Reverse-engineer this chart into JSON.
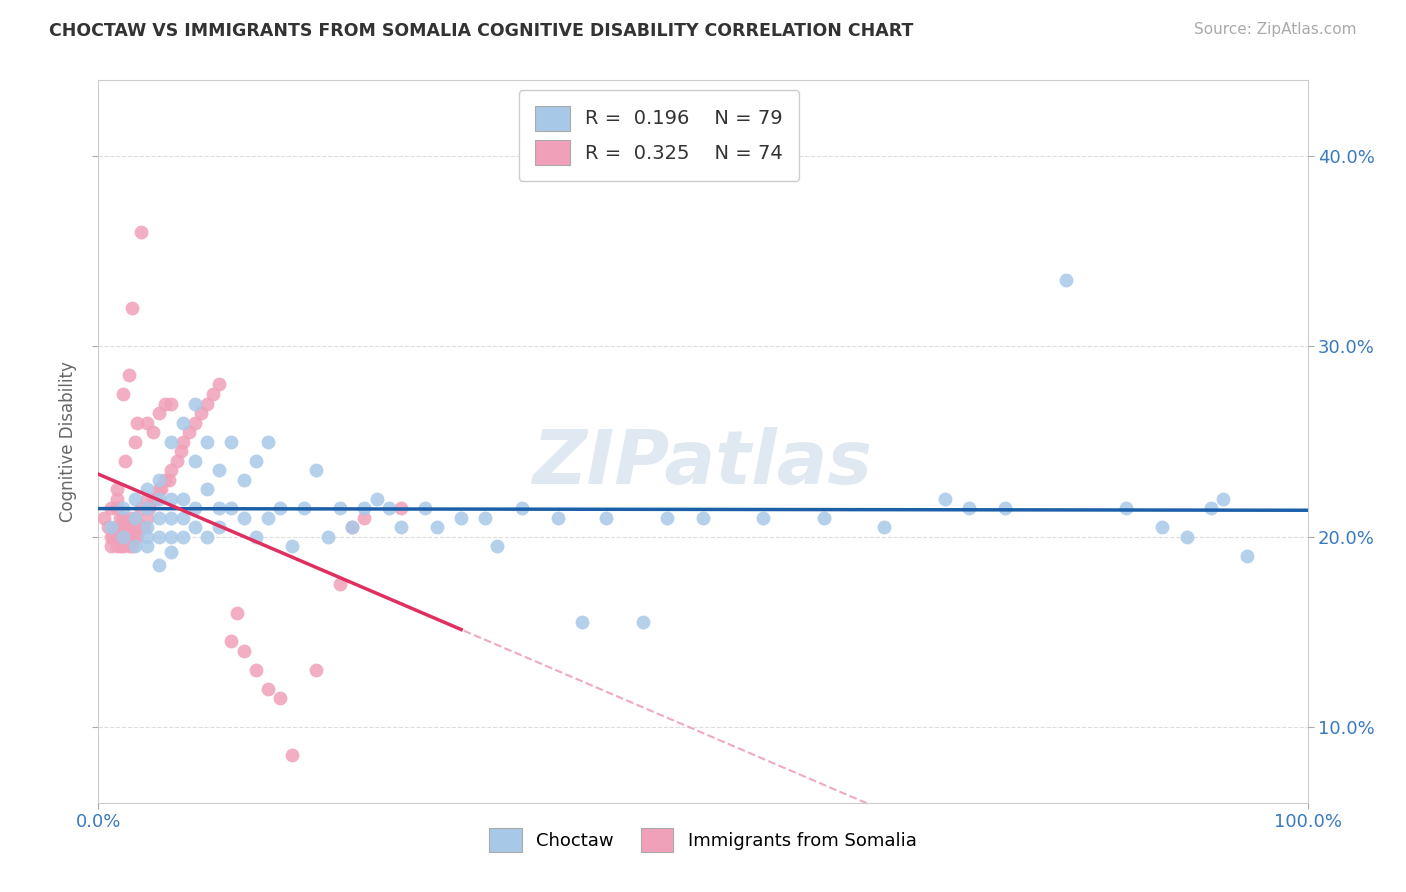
{
  "title": "CHOCTAW VS IMMIGRANTS FROM SOMALIA COGNITIVE DISABILITY CORRELATION CHART",
  "source": "Source: ZipAtlas.com",
  "ylabel": "Cognitive Disability",
  "xlabel": "",
  "xlim": [
    0,
    1.0
  ],
  "ylim": [
    0.06,
    0.44
  ],
  "yticks": [
    0.1,
    0.2,
    0.3,
    0.4
  ],
  "ytick_labels": [
    "10.0%",
    "20.0%",
    "30.0%",
    "40.0%"
  ],
  "xtick_labels": [
    "0.0%",
    "100.0%"
  ],
  "choctaw_color": "#a8c8e8",
  "somalia_color": "#f0a0b8",
  "choctaw_line_color": "#1a5fa8",
  "somalia_line_color": "#e03060",
  "choctaw_R": 0.196,
  "choctaw_N": 79,
  "somalia_R": 0.325,
  "somalia_N": 74,
  "watermark": "ZIPatlas",
  "legend_choctaw": "Choctaw",
  "legend_somalia": "Immigrants from Somalia",
  "choctaw_scatter_x": [
    0.01,
    0.02,
    0.02,
    0.03,
    0.03,
    0.03,
    0.04,
    0.04,
    0.04,
    0.04,
    0.04,
    0.05,
    0.05,
    0.05,
    0.05,
    0.05,
    0.06,
    0.06,
    0.06,
    0.06,
    0.06,
    0.07,
    0.07,
    0.07,
    0.07,
    0.08,
    0.08,
    0.08,
    0.08,
    0.09,
    0.09,
    0.09,
    0.1,
    0.1,
    0.1,
    0.11,
    0.11,
    0.12,
    0.12,
    0.13,
    0.13,
    0.14,
    0.14,
    0.15,
    0.16,
    0.17,
    0.18,
    0.19,
    0.2,
    0.21,
    0.22,
    0.23,
    0.24,
    0.25,
    0.27,
    0.28,
    0.3,
    0.32,
    0.33,
    0.35,
    0.38,
    0.4,
    0.42,
    0.45,
    0.47,
    0.5,
    0.55,
    0.6,
    0.65,
    0.7,
    0.72,
    0.75,
    0.8,
    0.85,
    0.88,
    0.9,
    0.92,
    0.93,
    0.95
  ],
  "choctaw_scatter_y": [
    0.205,
    0.2,
    0.215,
    0.195,
    0.21,
    0.22,
    0.2,
    0.205,
    0.215,
    0.195,
    0.225,
    0.185,
    0.2,
    0.21,
    0.22,
    0.23,
    0.192,
    0.2,
    0.21,
    0.22,
    0.25,
    0.2,
    0.21,
    0.22,
    0.26,
    0.205,
    0.215,
    0.24,
    0.27,
    0.2,
    0.225,
    0.25,
    0.205,
    0.215,
    0.235,
    0.215,
    0.25,
    0.21,
    0.23,
    0.2,
    0.24,
    0.21,
    0.25,
    0.215,
    0.195,
    0.215,
    0.235,
    0.2,
    0.215,
    0.205,
    0.215,
    0.22,
    0.215,
    0.205,
    0.215,
    0.205,
    0.21,
    0.21,
    0.195,
    0.215,
    0.21,
    0.155,
    0.21,
    0.155,
    0.21,
    0.21,
    0.21,
    0.21,
    0.205,
    0.22,
    0.215,
    0.215,
    0.335,
    0.215,
    0.205,
    0.2,
    0.215,
    0.22,
    0.19
  ],
  "somalia_scatter_x": [
    0.005,
    0.008,
    0.01,
    0.01,
    0.01,
    0.012,
    0.015,
    0.015,
    0.015,
    0.015,
    0.015,
    0.018,
    0.018,
    0.018,
    0.02,
    0.02,
    0.02,
    0.02,
    0.022,
    0.022,
    0.022,
    0.025,
    0.025,
    0.025,
    0.025,
    0.028,
    0.028,
    0.028,
    0.03,
    0.03,
    0.03,
    0.03,
    0.032,
    0.032,
    0.035,
    0.035,
    0.035,
    0.038,
    0.04,
    0.04,
    0.04,
    0.042,
    0.045,
    0.045,
    0.048,
    0.05,
    0.05,
    0.052,
    0.055,
    0.055,
    0.058,
    0.06,
    0.06,
    0.065,
    0.068,
    0.07,
    0.075,
    0.08,
    0.085,
    0.09,
    0.095,
    0.1,
    0.11,
    0.115,
    0.12,
    0.13,
    0.14,
    0.15,
    0.16,
    0.18,
    0.2,
    0.21,
    0.22,
    0.25
  ],
  "somalia_scatter_y": [
    0.21,
    0.205,
    0.2,
    0.195,
    0.215,
    0.2,
    0.195,
    0.205,
    0.215,
    0.22,
    0.225,
    0.195,
    0.205,
    0.21,
    0.195,
    0.2,
    0.21,
    0.275,
    0.2,
    0.205,
    0.24,
    0.195,
    0.2,
    0.21,
    0.285,
    0.195,
    0.205,
    0.32,
    0.2,
    0.205,
    0.21,
    0.25,
    0.2,
    0.26,
    0.205,
    0.215,
    0.36,
    0.205,
    0.21,
    0.22,
    0.26,
    0.215,
    0.22,
    0.255,
    0.22,
    0.225,
    0.265,
    0.225,
    0.23,
    0.27,
    0.23,
    0.235,
    0.27,
    0.24,
    0.245,
    0.25,
    0.255,
    0.26,
    0.265,
    0.27,
    0.275,
    0.28,
    0.145,
    0.16,
    0.14,
    0.13,
    0.12,
    0.115,
    0.085,
    0.13,
    0.175,
    0.205,
    0.21,
    0.215
  ]
}
